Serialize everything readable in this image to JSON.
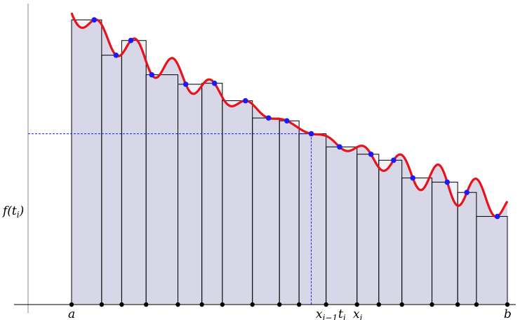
{
  "labels": {
    "f_of_t": "f(t",
    "f_of_t_sub": "i",
    "f_of_t_close": ")",
    "a": "a",
    "b": "b",
    "x_prev": "x",
    "x_prev_sub": "i−1",
    "t_i": "t",
    "t_i_sub": "i",
    "x_i": "x",
    "x_i_sub": "i"
  },
  "colors": {
    "curve": "#e8121a",
    "area_fill": "#d8d8e8",
    "sample_point": "#1a1aff",
    "partition_point": "#000000",
    "guide_line": "#1a1aff",
    "axis": "#000000"
  },
  "curve_function": "decreasing-wavy",
  "rectangles": [
    {
      "x0": 0.0,
      "x1": 0.069,
      "t": 0.052
    },
    {
      "x0": 0.069,
      "x1": 0.115,
      "t": 0.102
    },
    {
      "x0": 0.115,
      "x1": 0.171,
      "t": 0.136
    },
    {
      "x0": 0.171,
      "x1": 0.244,
      "t": 0.184
    },
    {
      "x0": 0.244,
      "x1": 0.299,
      "t": 0.262
    },
    {
      "x0": 0.299,
      "x1": 0.346,
      "t": 0.328
    },
    {
      "x0": 0.346,
      "x1": 0.415,
      "t": 0.399
    },
    {
      "x0": 0.415,
      "x1": 0.477,
      "t": 0.452
    },
    {
      "x0": 0.477,
      "x1": 0.522,
      "t": 0.494
    },
    {
      "x0": 0.522,
      "x1": 0.584,
      "t": 0.55
    },
    {
      "x0": 0.584,
      "x1": 0.655,
      "t": 0.615
    },
    {
      "x0": 0.655,
      "x1": 0.705,
      "t": 0.687
    },
    {
      "x0": 0.705,
      "x1": 0.758,
      "t": 0.739
    },
    {
      "x0": 0.758,
      "x1": 0.827,
      "t": 0.783
    },
    {
      "x0": 0.827,
      "x1": 0.886,
      "t": 0.862
    },
    {
      "x0": 0.886,
      "x1": 0.929,
      "t": 0.907
    },
    {
      "x0": 0.929,
      "x1": 1.0,
      "t": 0.977
    }
  ],
  "highlighted_index": 9
}
